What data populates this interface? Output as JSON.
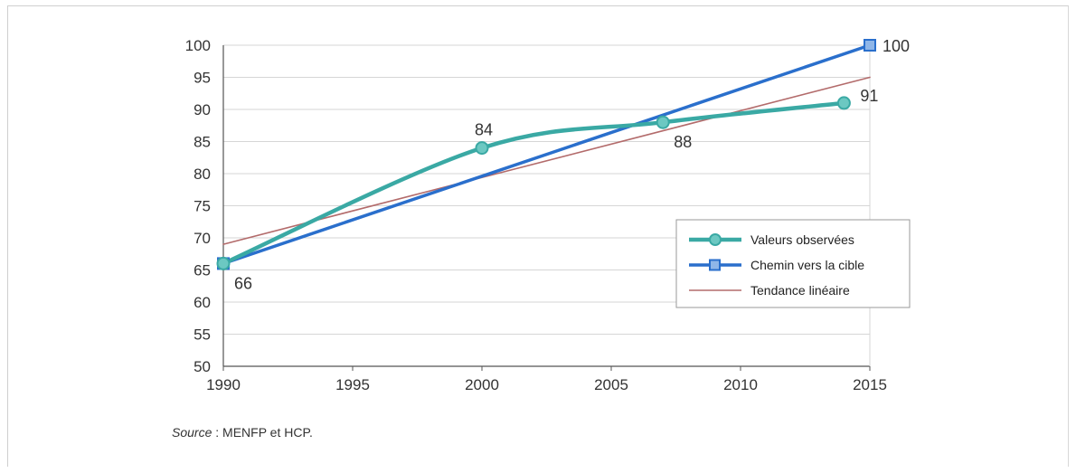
{
  "chart_data": {
    "type": "line",
    "xlim": [
      1990,
      2015
    ],
    "ylim": [
      50,
      100
    ],
    "xticks": [
      1990,
      1995,
      2000,
      2005,
      2010,
      2015
    ],
    "yticks": [
      50,
      55,
      60,
      65,
      70,
      75,
      80,
      85,
      90,
      95,
      100
    ],
    "grid": "horizontal",
    "legend_position": "bottom-right",
    "series": [
      {
        "name": "Valeurs observées",
        "color": "#3aa9a4",
        "marker": "circle",
        "smooth": true,
        "points": [
          [
            1990,
            66
          ],
          [
            2000,
            84
          ],
          [
            2007,
            88
          ],
          [
            2014,
            91
          ]
        ]
      },
      {
        "name": "Chemin vers la cible",
        "color": "#2a6fcc",
        "marker": "square",
        "points": [
          [
            1990,
            66
          ],
          [
            2015,
            100
          ]
        ]
      },
      {
        "name": "Tendance linéaire",
        "color": "#b36b6b",
        "marker": "none",
        "points": [
          [
            1990,
            69
          ],
          [
            2015,
            95
          ]
        ]
      }
    ],
    "data_labels": [
      {
        "text": "66",
        "x": 1990,
        "y": 66,
        "anchor": "below-right"
      },
      {
        "text": "84",
        "x": 2000,
        "y": 84,
        "anchor": "above"
      },
      {
        "text": "88",
        "x": 2007,
        "y": 88,
        "anchor": "below-right"
      },
      {
        "text": "91",
        "x": 2014,
        "y": 91,
        "anchor": "above-right"
      },
      {
        "text": "100",
        "x": 2015,
        "y": 100,
        "anchor": "right"
      }
    ]
  },
  "source": {
    "label": "Source",
    "separator": " : ",
    "text": "MENFP et HCP."
  }
}
